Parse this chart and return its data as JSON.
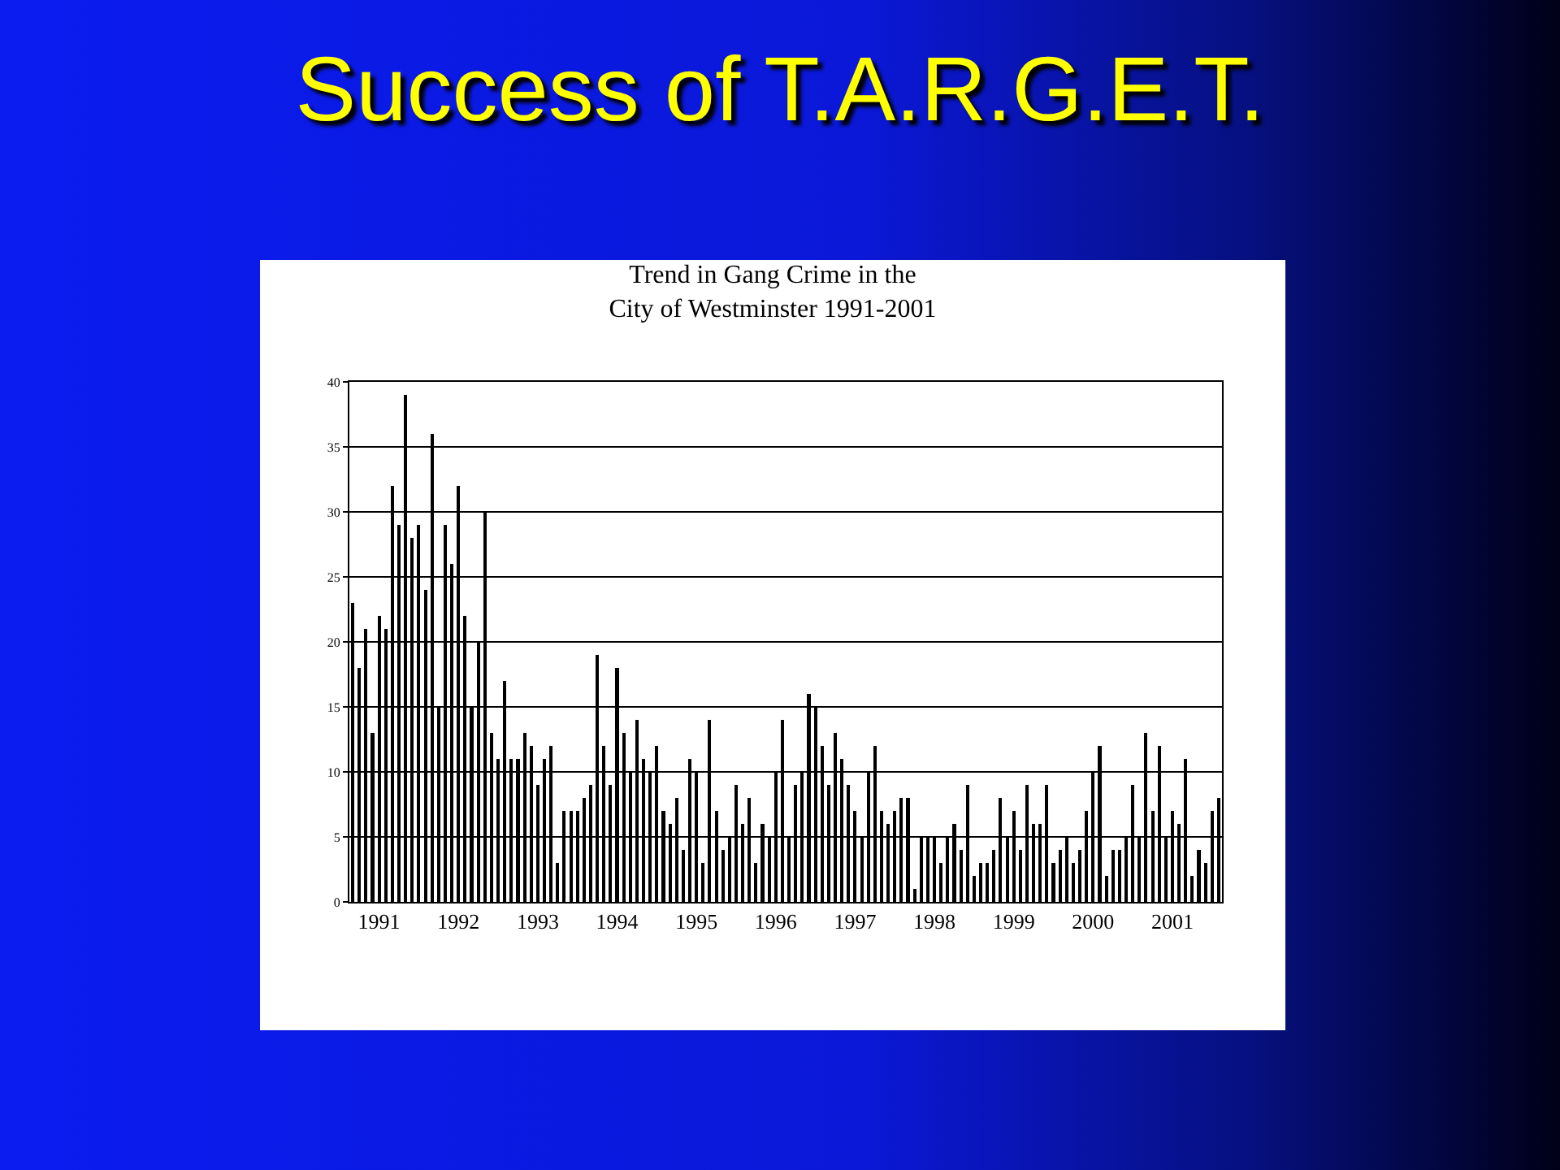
{
  "chart_data": {
    "type": "bar",
    "title": "Success of T.A.R.G.E.T.",
    "subtitle": "Trend in Gang Crime in the\nCity of Westminster 1991-2001",
    "categories": [
      null,
      null,
      null,
      null,
      "1991",
      null,
      null,
      null,
      null,
      null,
      null,
      null,
      null,
      null,
      null,
      null,
      "1992",
      null,
      null,
      null,
      null,
      null,
      null,
      null,
      null,
      null,
      null,
      null,
      "1993",
      null,
      null,
      null,
      null,
      null,
      null,
      null,
      null,
      null,
      null,
      null,
      "1994",
      null,
      null,
      null,
      null,
      null,
      null,
      null,
      null,
      null,
      null,
      null,
      "1995",
      null,
      null,
      null,
      null,
      null,
      null,
      null,
      null,
      null,
      null,
      null,
      "1996",
      null,
      null,
      null,
      null,
      null,
      null,
      null,
      null,
      null,
      null,
      null,
      "1997",
      null,
      null,
      null,
      null,
      null,
      null,
      null,
      null,
      null,
      null,
      null,
      "1998",
      null,
      null,
      null,
      null,
      null,
      null,
      null,
      null,
      null,
      null,
      null,
      "1999",
      null,
      null,
      null,
      null,
      null,
      null,
      null,
      null,
      null,
      null,
      null,
      "2000",
      null,
      null,
      null,
      null,
      null,
      null,
      null,
      null,
      null,
      null,
      null,
      "2001",
      null,
      null,
      null,
      null,
      null,
      null,
      null
    ],
    "values": [
      23,
      18,
      21,
      13,
      22,
      21,
      32,
      29,
      39,
      28,
      29,
      24,
      36,
      15,
      29,
      26,
      32,
      22,
      15,
      20,
      30,
      13,
      11,
      17,
      11,
      11,
      13,
      12,
      9,
      11,
      12,
      3,
      7,
      7,
      7,
      8,
      9,
      19,
      12,
      9,
      18,
      13,
      10,
      14,
      11,
      10,
      12,
      7,
      6,
      8,
      4,
      11,
      10,
      3,
      14,
      7,
      4,
      5,
      9,
      6,
      8,
      3,
      6,
      5,
      10,
      14,
      5,
      9,
      10,
      16,
      15,
      12,
      9,
      13,
      11,
      9,
      7,
      5,
      10,
      12,
      7,
      6,
      7,
      8,
      8,
      1,
      5,
      5,
      5,
      3,
      5,
      6,
      4,
      9,
      2,
      3,
      3,
      4,
      8,
      5,
      7,
      4,
      9,
      6,
      6,
      9,
      3,
      4,
      5,
      3,
      4,
      7,
      10,
      12,
      2,
      4,
      4,
      5,
      9,
      5,
      13,
      7,
      12,
      5,
      7,
      6,
      11,
      2,
      4,
      3,
      7,
      8
    ],
    "color": "#000000",
    "ylim": [
      0,
      40
    ],
    "yticks": [
      0,
      5,
      10,
      15,
      20,
      25,
      30,
      35,
      40
    ],
    "grid": "y"
  }
}
